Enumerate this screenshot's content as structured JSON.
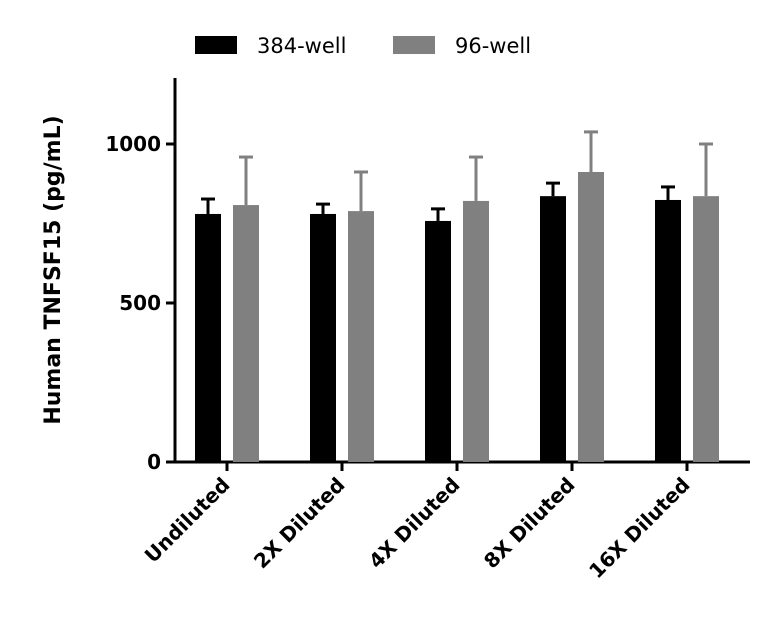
{
  "chart_data": {
    "type": "bar",
    "title": "",
    "xlabel": "",
    "ylabel": "Human TNFSF15 (pg/mL)",
    "ylim": [
      0,
      1200
    ],
    "yticks": [
      0,
      500,
      1000
    ],
    "categories": [
      "Undiluted",
      "2X Diluted",
      "4X Diluted",
      "8X Diluted",
      "16X Diluted"
    ],
    "legend_position": "top",
    "grid": false,
    "series": [
      {
        "name": "384-well",
        "color": "#000000",
        "values": [
          780,
          780,
          758,
          836,
          824
        ],
        "error_upper": [
          827,
          811,
          796,
          877,
          865
        ]
      },
      {
        "name": "96-well",
        "color": "#808080",
        "values": [
          808,
          789,
          821,
          912,
          836
        ],
        "error_upper": [
          959,
          912,
          959,
          1038,
          1000
        ]
      }
    ]
  }
}
